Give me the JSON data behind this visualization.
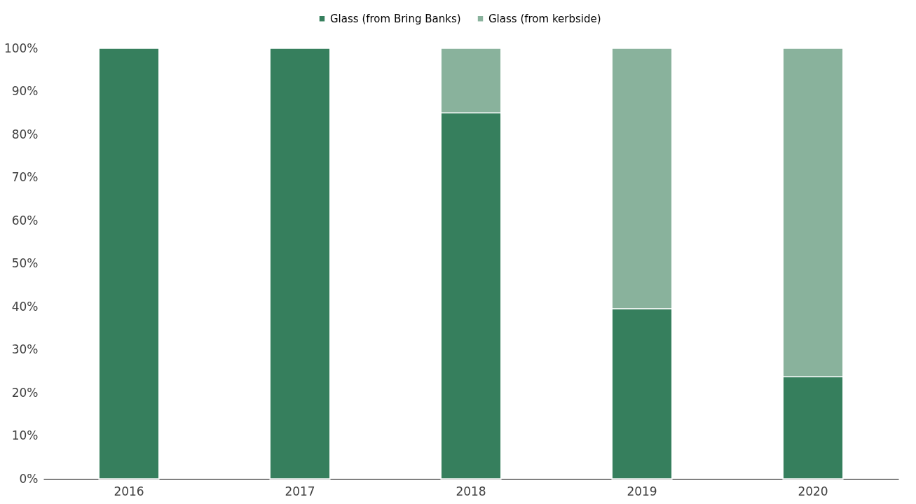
{
  "chart_data": {
    "type": "bar",
    "stacked": true,
    "categories": [
      "2016",
      "2017",
      "2018",
      "2019",
      "2020"
    ],
    "series": [
      {
        "name": "Glass (from Bring Banks)",
        "color": "#367f5d",
        "values": [
          100,
          100,
          85,
          39.5,
          23.7
        ]
      },
      {
        "name": "Glass (from kerbside)",
        "color": "#89b29c",
        "values": [
          null,
          null,
          15,
          60.5,
          76.3
        ]
      }
    ],
    "ylim": [
      0,
      100
    ],
    "yticks": [
      {
        "value": 0,
        "label": "0%"
      },
      {
        "value": 10,
        "label": "10%"
      },
      {
        "value": 20,
        "label": "20%"
      },
      {
        "value": 30,
        "label": "30%"
      },
      {
        "value": 40,
        "label": "40%"
      },
      {
        "value": 50,
        "label": "50%"
      },
      {
        "value": 60,
        "label": "60%"
      },
      {
        "value": 70,
        "label": "70%"
      },
      {
        "value": 80,
        "label": "80%"
      },
      {
        "value": 90,
        "label": "90%"
      },
      {
        "value": 100,
        "label": "100%"
      }
    ],
    "grid": false,
    "legend": "top"
  }
}
